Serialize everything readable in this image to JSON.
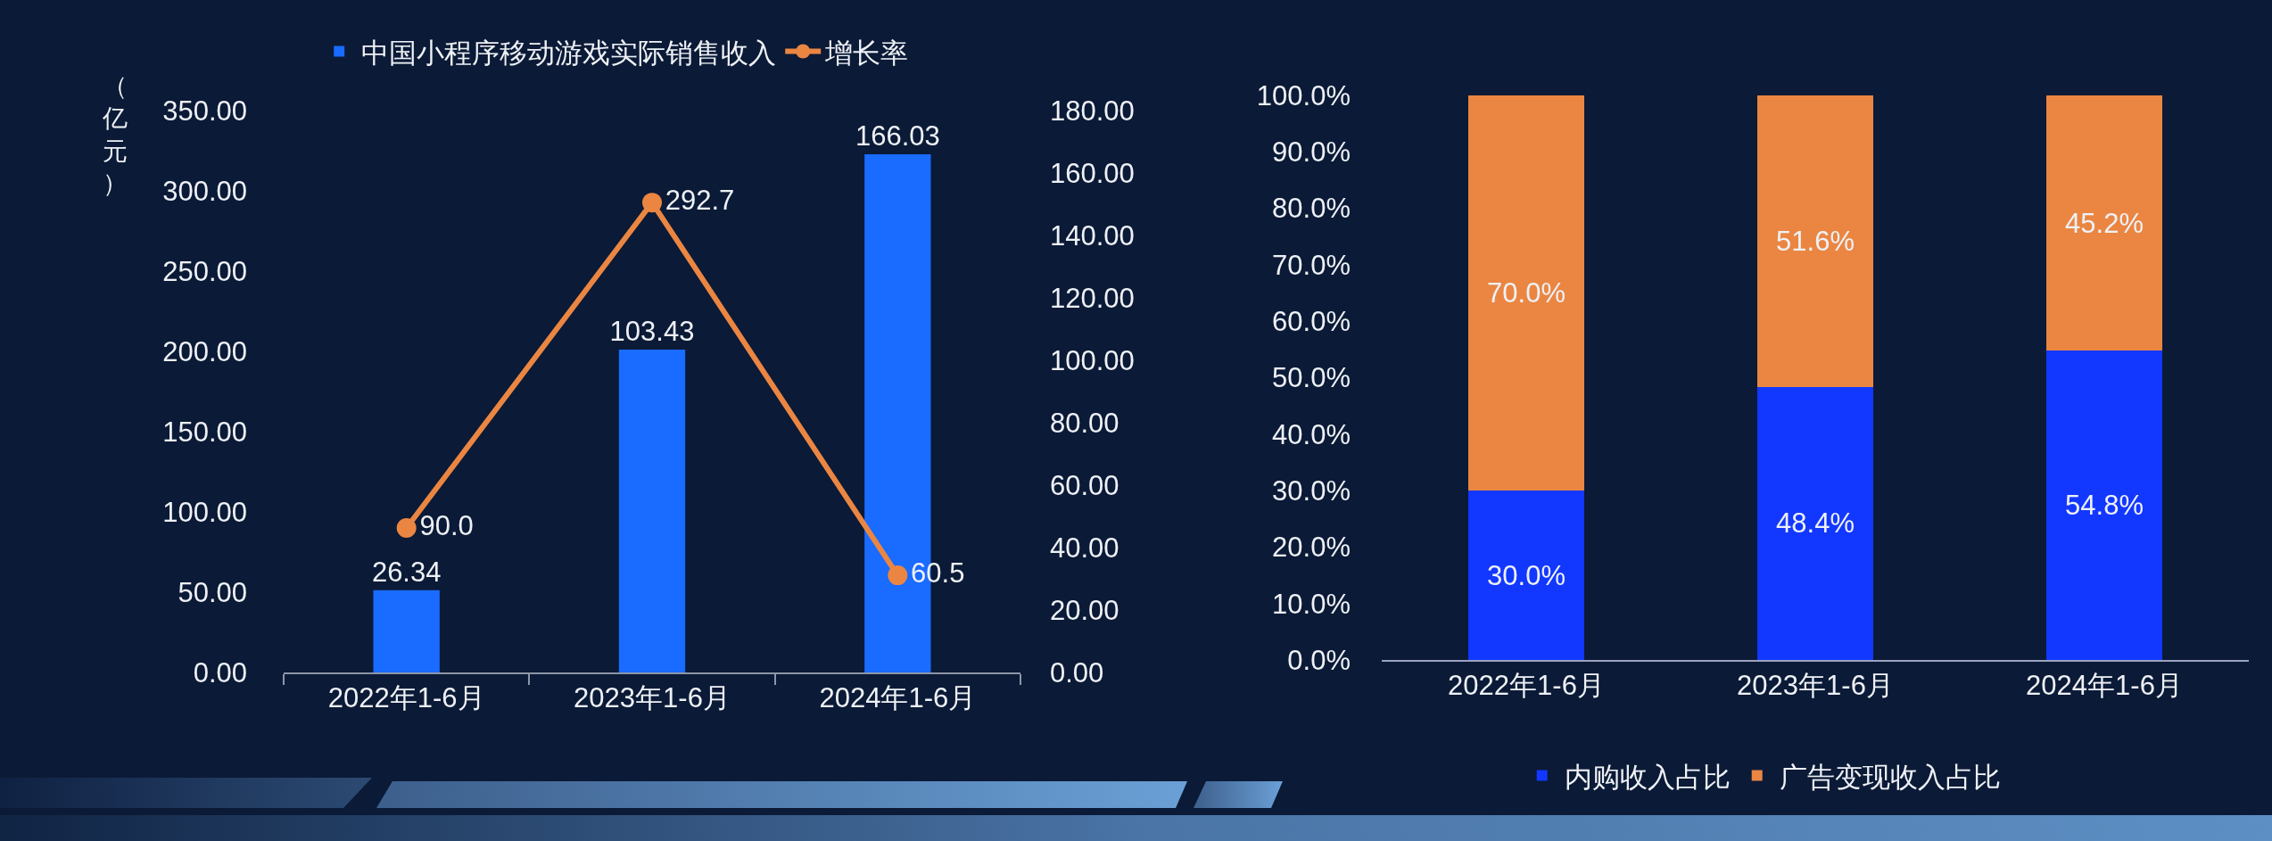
{
  "chart_data": [
    {
      "type": "bar",
      "categories": [
        "2022年1-6月",
        "2023年1-6月",
        "2024年1-6月"
      ],
      "ylabel": "（亿元）",
      "series": [
        {
          "name": "中国小程序移动游戏实际销售收入",
          "axis": "y2",
          "color": "#1a6bff",
          "values": [
            26.34,
            103.43,
            166.03
          ],
          "value_labels": [
            "26.34",
            "103.43",
            "166.03"
          ]
        },
        {
          "name": "增长率",
          "type": "line",
          "axis": "y",
          "color": "#ea8642",
          "values": [
            90.0,
            292.7,
            60.5
          ],
          "value_labels": [
            "90.0",
            "292.7",
            "60.5"
          ]
        }
      ],
      "marker": "circle",
      "grid": false,
      "legend": "top",
      "ylim": [
        0,
        350
      ],
      "yticks": [
        {
          "value": 0,
          "label": "0.00"
        },
        {
          "value": 50,
          "label": "50.00"
        },
        {
          "value": 100,
          "label": "100.00"
        },
        {
          "value": 150,
          "label": "150.00"
        },
        {
          "value": 200,
          "label": "200.00"
        },
        {
          "value": 250,
          "label": "250.00"
        },
        {
          "value": 300,
          "label": "300.00"
        },
        {
          "value": 350,
          "label": "350.00"
        }
      ],
      "y2lim": [
        0,
        180
      ],
      "y2ticks": [
        {
          "value": 0,
          "label": "0.00"
        },
        {
          "value": 20,
          "label": "20.00"
        },
        {
          "value": 40,
          "label": "40.00"
        },
        {
          "value": 60,
          "label": "60.00"
        },
        {
          "value": 80,
          "label": "80.00"
        },
        {
          "value": 100,
          "label": "100.00"
        },
        {
          "value": 120,
          "label": "120.00"
        },
        {
          "value": 140,
          "label": "140.00"
        },
        {
          "value": 160,
          "label": "160.00"
        },
        {
          "value": 180,
          "label": "180.00"
        }
      ]
    },
    {
      "type": "bar",
      "stacked": true,
      "categories": [
        "2022年1-6月",
        "2023年1-6月",
        "2024年1-6月"
      ],
      "series": [
        {
          "name": "内购收入占比",
          "color": "#1238ff",
          "values": [
            30.0,
            48.4,
            54.8
          ],
          "value_labels": [
            "30.0%",
            "48.4%",
            "54.8%"
          ]
        },
        {
          "name": "广告变现收入占比",
          "color": "#ea8642",
          "values": [
            70.0,
            51.6,
            45.2
          ],
          "value_labels": [
            "70.0%",
            "51.6%",
            "45.2%"
          ]
        }
      ],
      "grid": false,
      "legend": "bottom",
      "ylim": [
        0,
        100
      ],
      "yticks": [
        {
          "value": 0,
          "label": "0.0%"
        },
        {
          "value": 10,
          "label": "10.0%"
        },
        {
          "value": 20,
          "label": "20.0%"
        },
        {
          "value": 30,
          "label": "30.0%"
        },
        {
          "value": 40,
          "label": "40.0%"
        },
        {
          "value": 50,
          "label": "50.0%"
        },
        {
          "value": 60,
          "label": "60.0%"
        },
        {
          "value": 70,
          "label": "70.0%"
        },
        {
          "value": 80,
          "label": "80.0%"
        },
        {
          "value": 90,
          "label": "90.0%"
        },
        {
          "value": 100,
          "label": "100.0%"
        }
      ]
    }
  ]
}
